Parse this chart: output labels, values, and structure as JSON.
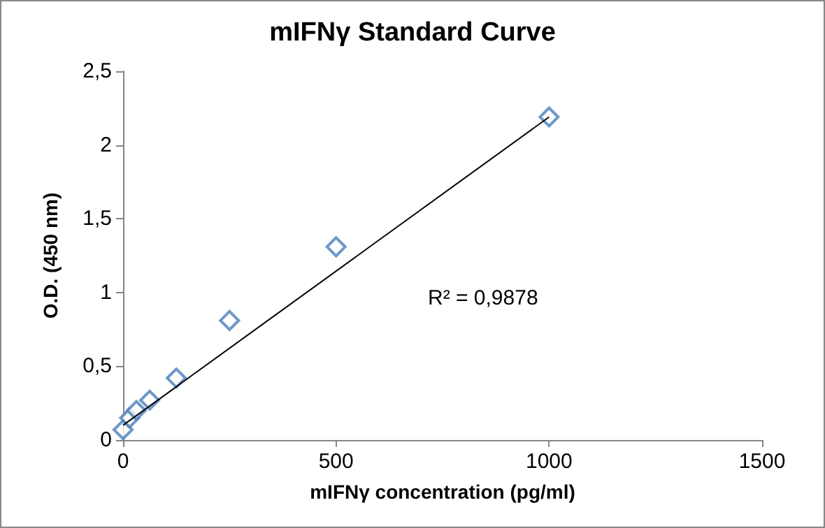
{
  "chart_data": {
    "type": "scatter",
    "title": "mIFNγ Standard Curve",
    "xlabel": "mIFNγ concentration (pg/ml)",
    "ylabel": "O.D. (450 nm)",
    "series": [
      {
        "color": "#4a7ebb",
        "marker": "diamond",
        "x": [
          0,
          15.6,
          31.25,
          62.5,
          125,
          250,
          500,
          1000
        ],
        "values": [
          0.07,
          0.15,
          0.2,
          0.27,
          0.42,
          0.81,
          1.31,
          2.19
        ]
      },
      {
        "type": "line",
        "color": "#000000",
        "marker": "none",
        "x": [
          0,
          1000
        ],
        "values": [
          0.1,
          2.19
        ]
      }
    ],
    "xlim": [
      0,
      1500
    ],
    "xticks": [
      0,
      500,
      1000,
      1500
    ],
    "ylim": [
      0,
      2.5
    ],
    "yticks": [
      0,
      {
        "value": 0.5,
        "label": "0,5"
      },
      1,
      {
        "value": 1.5,
        "label": "1,5"
      },
      2,
      {
        "value": 2.5,
        "label": "2,5"
      }
    ],
    "annotations": [
      "R² = 0,9878"
    ],
    "grid": false
  }
}
